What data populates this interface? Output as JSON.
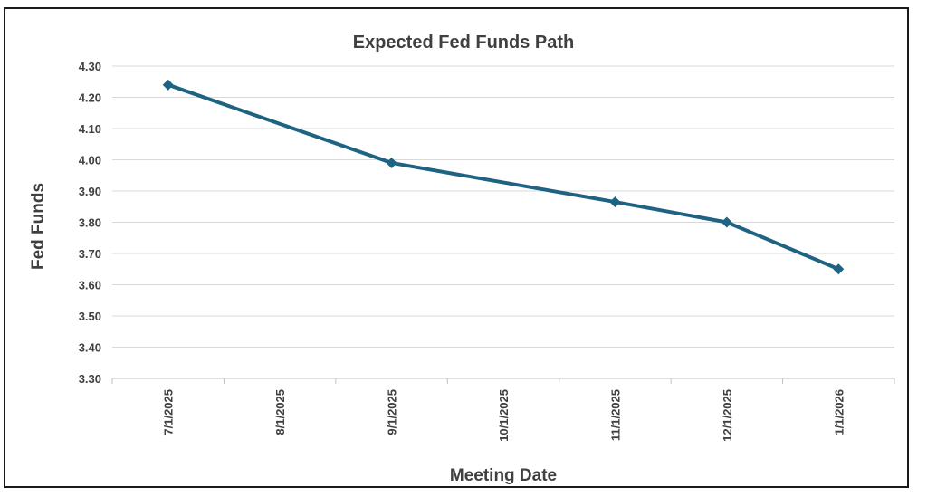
{
  "chart_data": {
    "type": "line",
    "title": "Expected Fed Funds Path",
    "xlabel": "Meeting Date",
    "ylabel": "Fed Funds",
    "categories": [
      "7/1/2025",
      "8/1/2025",
      "9/1/2025",
      "10/1/2025",
      "11/1/2025",
      "12/1/2025",
      "1/1/2026"
    ],
    "ylim": [
      3.3,
      4.3
    ],
    "yticks": [
      "4.30",
      "4.20",
      "4.10",
      "4.00",
      "3.90",
      "3.80",
      "3.70",
      "3.60",
      "3.50",
      "3.40",
      "3.30"
    ],
    "series": [
      {
        "x": [
          "7/1/2025",
          "9/1/2025",
          "11/1/2025",
          "12/1/2025",
          "1/1/2026"
        ],
        "values": [
          4.24,
          3.99,
          3.865,
          3.8,
          3.65
        ]
      }
    ],
    "grid": true,
    "legend": "none",
    "line_color": "#1f6383"
  }
}
